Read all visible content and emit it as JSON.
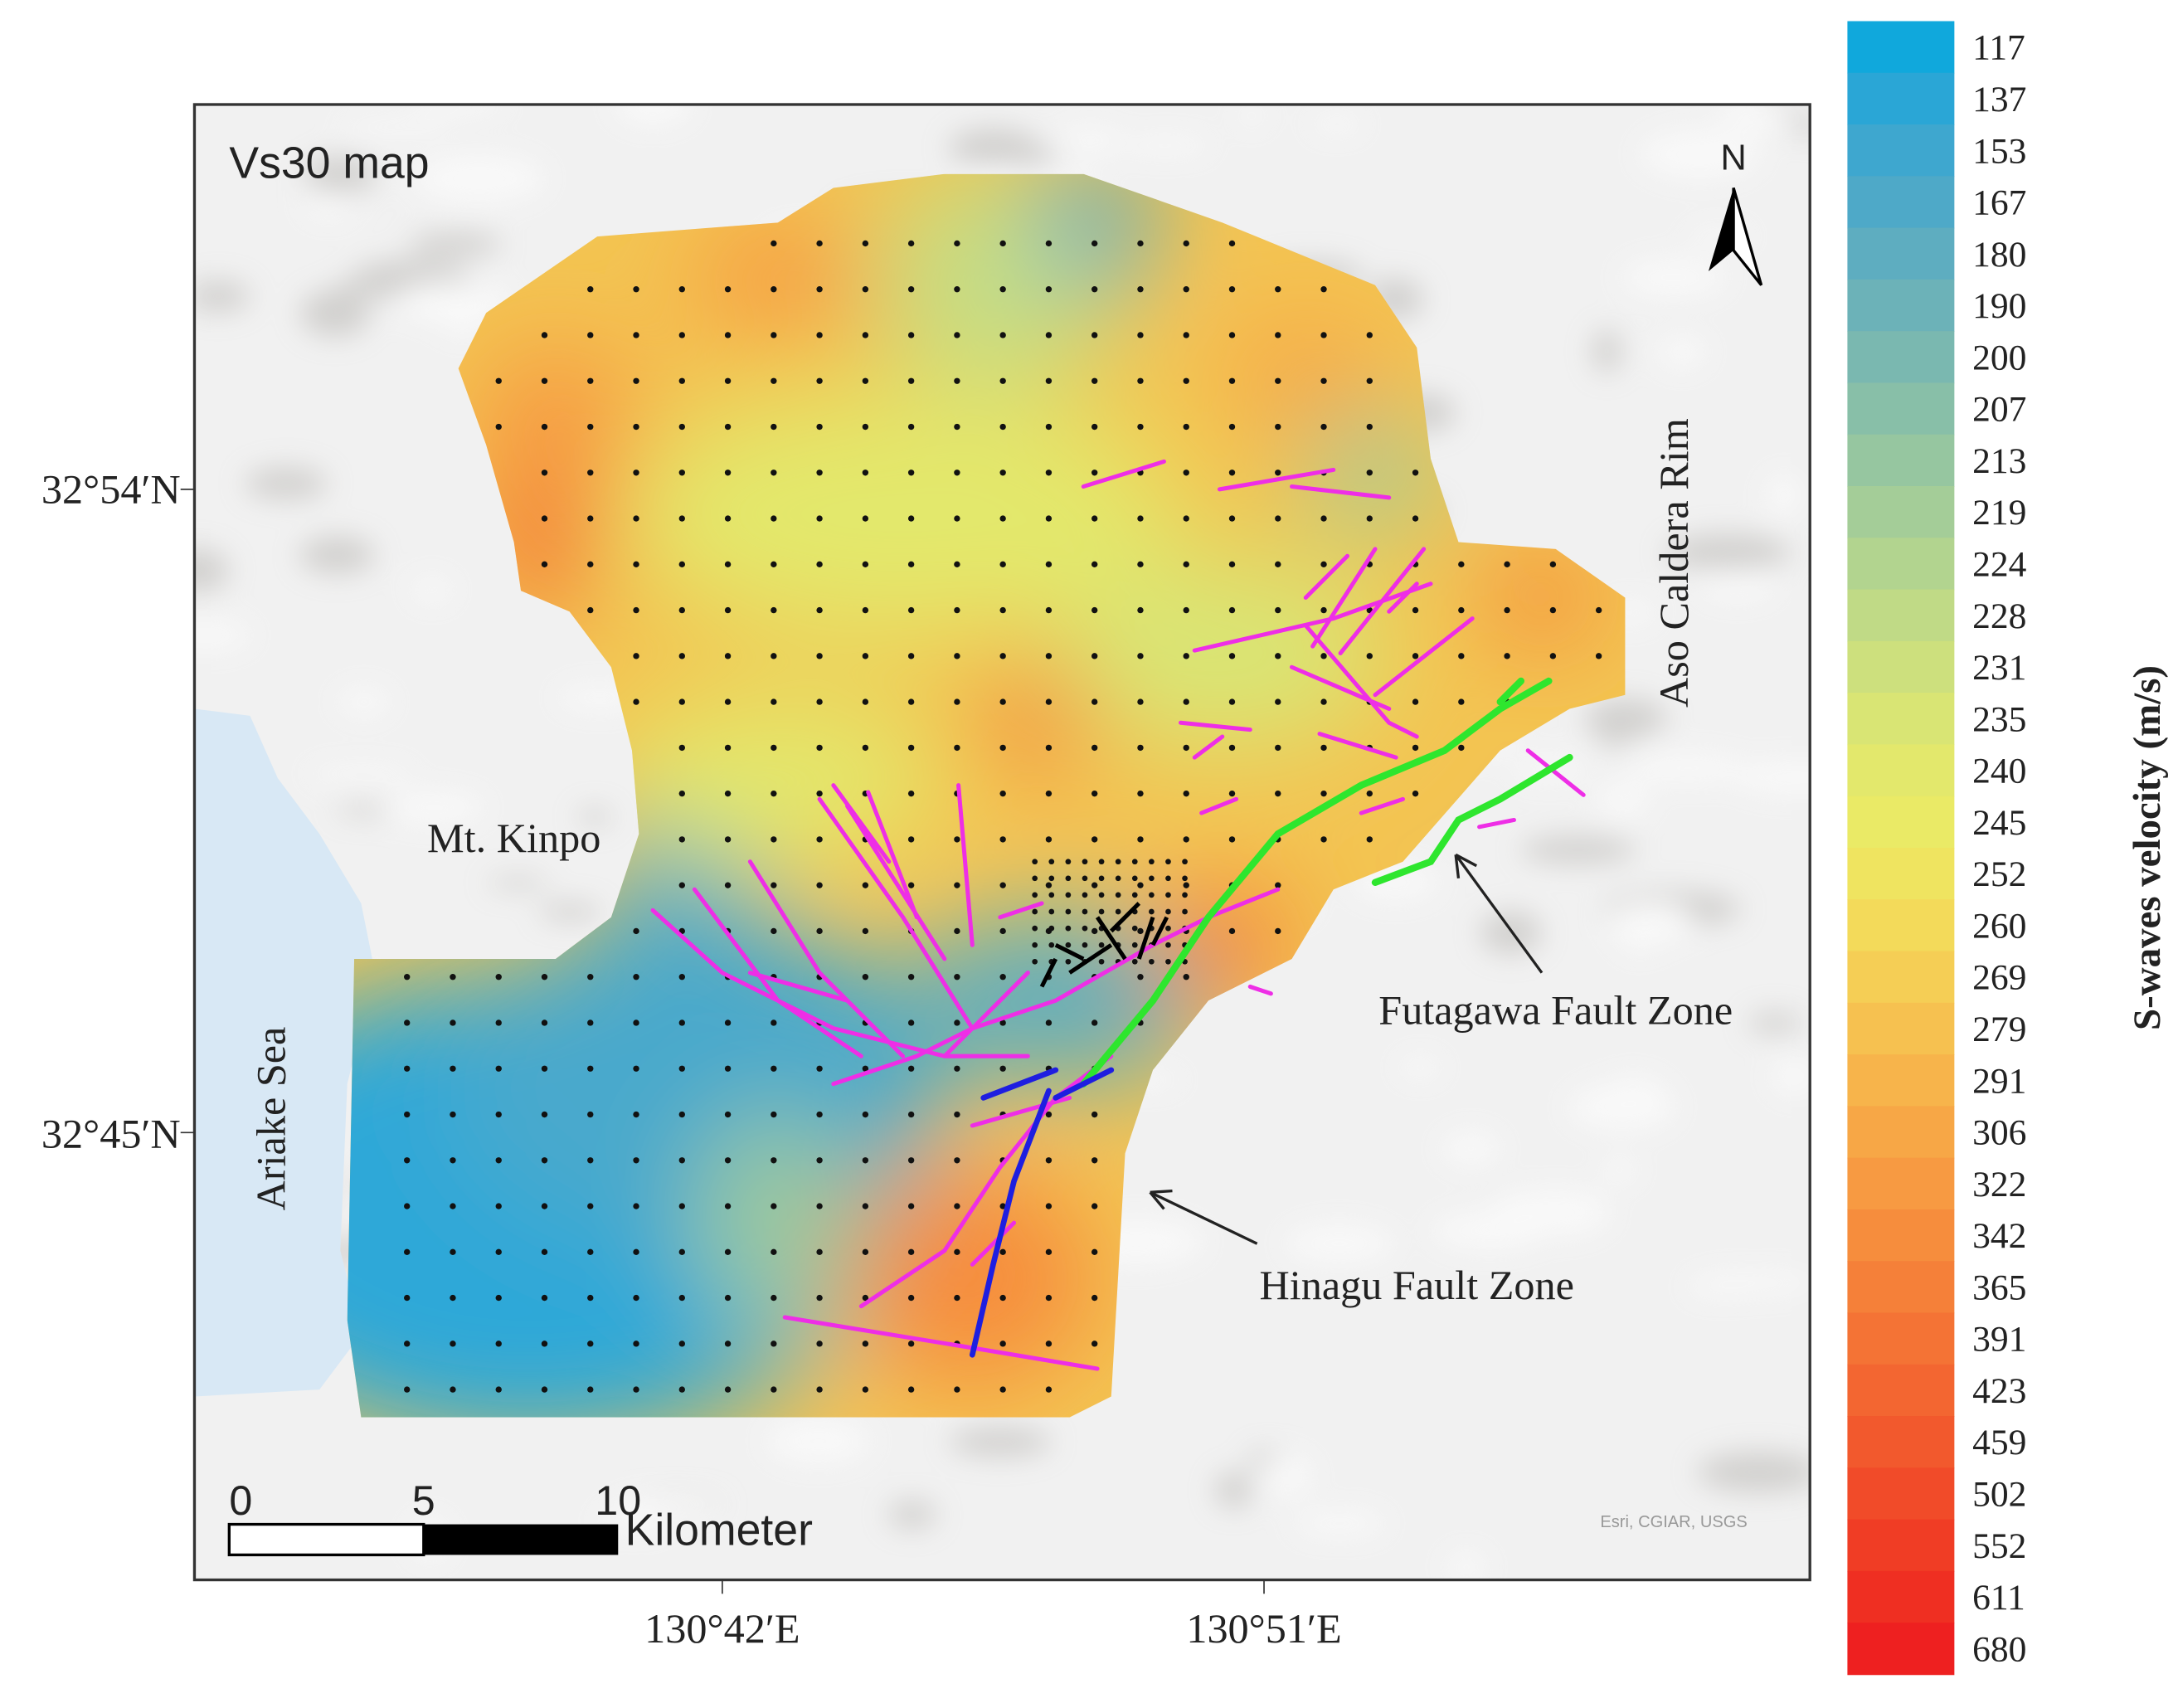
{
  "map": {
    "title": "Vs30 map",
    "xticks": [
      "130°42′E",
      "130°51′E"
    ],
    "yticks": [
      "32°54′N",
      "32°45′N"
    ],
    "north": "N",
    "annotations": {
      "kinpo": "Mt. Kinpo",
      "ariake": "Ariake Sea",
      "aso": "Aso Caldera Rim",
      "futagawa": "Futagawa Fault Zone",
      "hinagu": "Hinagu Fault Zone"
    },
    "scale_bar": {
      "ticks": [
        0,
        5,
        10
      ],
      "unit": "Kilometer"
    },
    "attribution": "Esri, CGIAR, USGS"
  },
  "colorbar": {
    "label": "S-waves velocity (m/s)",
    "ticks": [
      117,
      137,
      153,
      167,
      180,
      190,
      200,
      207,
      213,
      219,
      224,
      228,
      231,
      235,
      240,
      245,
      252,
      260,
      269,
      279,
      291,
      306,
      322,
      342,
      365,
      391,
      423,
      459,
      502,
      552,
      611,
      680
    ],
    "colors": [
      "#10a8dc",
      "#2aa6d6",
      "#3ea7cf",
      "#4ea9c8",
      "#5eadc0",
      "#6cb2b8",
      "#7ab8b0",
      "#88bfa8",
      "#96c6a0",
      "#a4cd98",
      "#b2d48f",
      "#c0da86",
      "#cde07d",
      "#d9e574",
      "#e3e86c",
      "#eaea66",
      "#efe460",
      "#f3da5a",
      "#f5ce55",
      "#f6c150",
      "#f7b44b",
      "#f7a746",
      "#f79a42",
      "#f68d3d",
      "#f58039",
      "#f47335",
      "#f36631",
      "#f2592d",
      "#f14b29",
      "#f03d25",
      "#ef2f22",
      "#ee2020"
    ]
  }
}
